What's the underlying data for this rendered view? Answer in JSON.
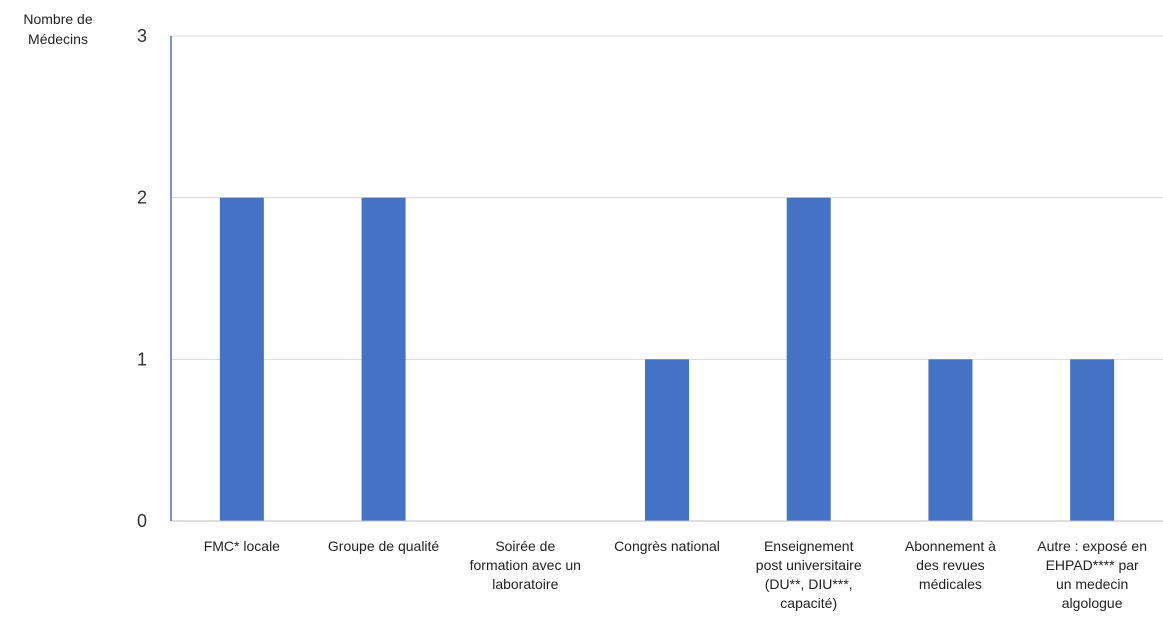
{
  "chart_data": {
    "type": "bar",
    "title": "",
    "xlabel": "",
    "ylabel": "Nombre de Médecins",
    "ylabel_lines": [
      "Nombre de",
      "Médecins"
    ],
    "categories": [
      "FMC* locale",
      "Groupe de qualité",
      "Soirée de formation avec un laboratoire",
      "Congrès national",
      "Enseignement post universitaire (DU**, DIU***, capacité)",
      "Abonnement à des revues médicales",
      "Autre : exposé en EHPAD**** par un medecin algologue"
    ],
    "category_lines": [
      [
        "FMC* locale"
      ],
      [
        "Groupe de qualité"
      ],
      [
        "Soirée de",
        "formation avec un",
        "laboratoire"
      ],
      [
        "Congrès national"
      ],
      [
        "Enseignement",
        "post universitaire",
        "(DU**, DIU***,",
        "capacité)"
      ],
      [
        "Abonnement à",
        "des revues",
        "médicales"
      ],
      [
        "Autre : exposé en",
        "EHPAD**** par",
        "un medecin",
        "algologue"
      ]
    ],
    "values": [
      2,
      2,
      0,
      1,
      2,
      1,
      1
    ],
    "ylim": [
      0,
      3
    ],
    "yticks": [
      0,
      1,
      2,
      3
    ],
    "grid": true,
    "legend": "none",
    "colors": {
      "bar": "#4472C4",
      "axis": "#4472C4",
      "grid": "#D9D9D9",
      "baseline": "#BFBFBF"
    }
  }
}
